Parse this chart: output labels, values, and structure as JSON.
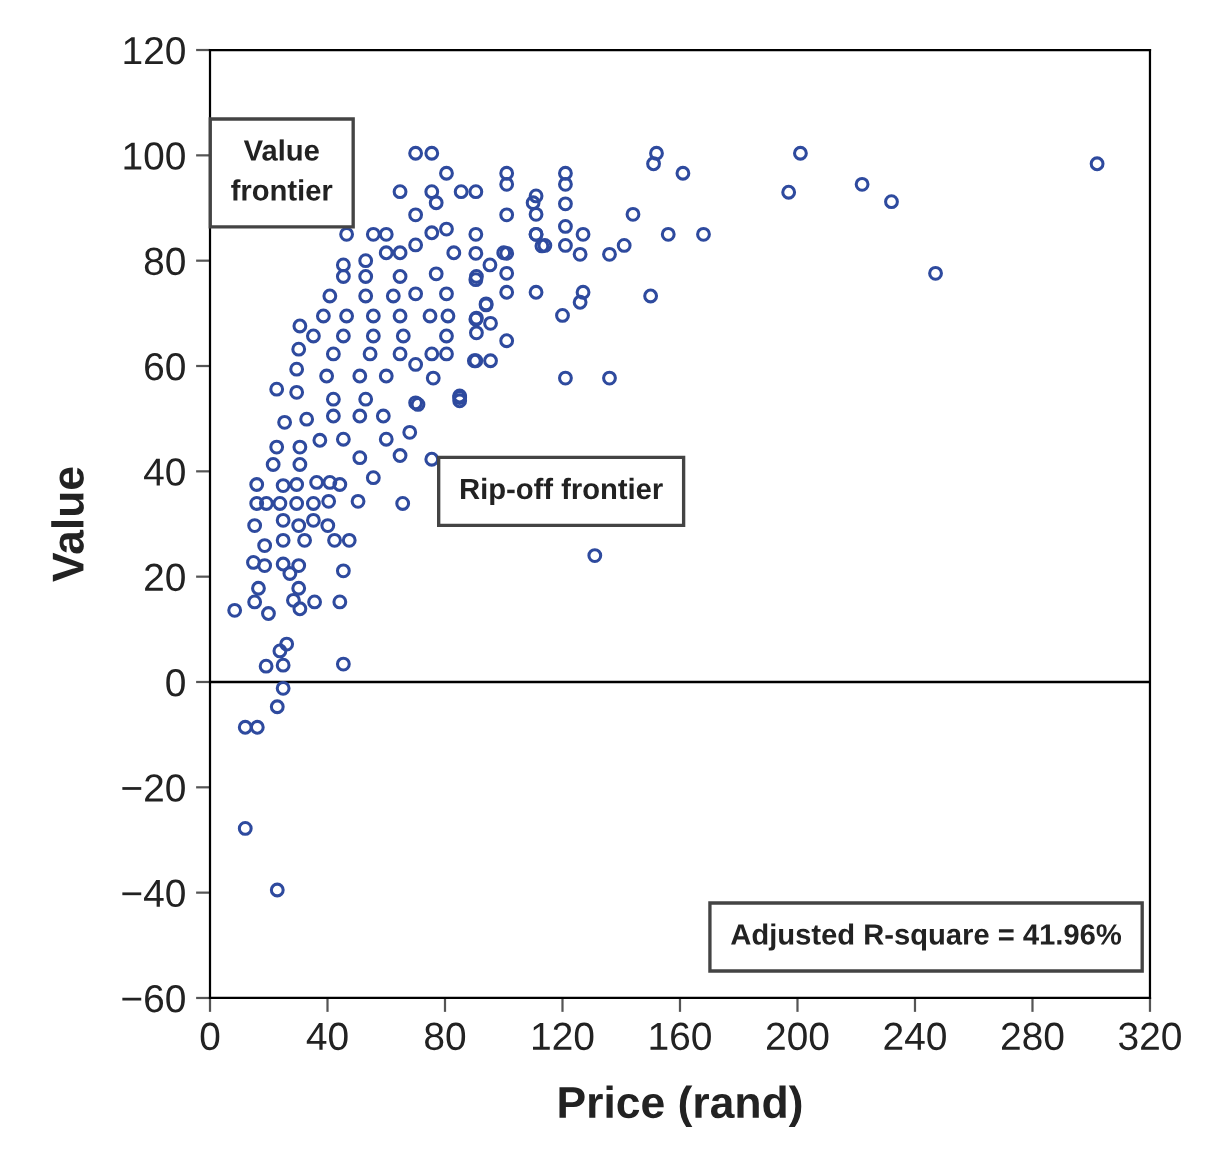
{
  "chart_data": {
    "type": "scatter",
    "xlabel": "Price (rand)",
    "ylabel": "Value",
    "annotations": [
      "Value\nfrontier",
      "Rip-off frontier",
      "Adjusted R-square = 41.96%"
    ],
    "xlim": [
      0,
      320
    ],
    "xticks": [
      0,
      40,
      80,
      120,
      160,
      200,
      240,
      280,
      320
    ],
    "ylim": [
      -60,
      120
    ],
    "yticks": [
      {
        "value": -60,
        "label": "−60"
      },
      {
        "value": -40,
        "label": "−40"
      },
      {
        "value": -20,
        "label": "−20"
      },
      0,
      20,
      40,
      60,
      80,
      100,
      120
    ],
    "grid": false,
    "marker": "circle",
    "ref_lines": [
      {
        "axis": "y",
        "value": 0,
        "color": "#000000"
      }
    ],
    "series": [
      {
        "color": "#2e4a9e",
        "x": [
          152,
          151,
          161,
          201,
          197,
          222,
          232,
          247,
          302,
          144,
          156,
          168,
          150,
          131,
          121,
          136,
          141,
          136,
          127,
          126,
          127,
          126,
          120,
          121,
          121,
          121,
          121,
          121,
          114,
          111,
          111,
          111,
          111,
          101,
          101,
          101,
          101,
          101,
          101,
          101,
          90.5,
          90.5,
          90.5,
          90.5,
          94,
          90.5,
          95.5,
          90.5,
          95.5,
          85,
          70,
          75.5,
          80.5,
          64.7,
          75.5,
          85.5,
          77,
          70,
          110,
          46.5,
          55.6,
          60,
          75.5,
          80.5,
          111,
          113,
          70,
          60,
          64.7,
          83,
          100,
          95.3,
          45.4,
          53,
          45.4,
          53,
          64.7,
          77,
          90.7,
          40.8,
          53,
          62.4,
          70,
          80.5,
          38.6,
          46.5,
          55.6,
          64.7,
          74.9,
          81,
          90.7,
          94,
          30.6,
          35.2,
          45.4,
          55.6,
          65.8,
          80.5,
          90.7,
          30.2,
          42,
          54.5,
          64.7,
          75.5,
          80.5,
          90,
          29.5,
          39.7,
          51,
          60,
          70,
          76,
          85,
          70,
          22.7,
          29.5,
          42,
          53,
          25.4,
          32.9,
          42,
          51,
          59,
          70.8,
          85,
          68,
          75.5,
          60,
          45.4,
          22.7,
          30.6,
          37.4,
          64.7,
          51,
          55.6,
          21.5,
          30.6,
          15.9,
          24.9,
          29.5,
          36.3,
          40.8,
          44.2,
          15.9,
          19.2,
          23.8,
          29.5,
          35.2,
          40.4,
          50.4,
          65.6,
          15.2,
          24.9,
          30.2,
          35.2,
          40.1,
          18.6,
          24.9,
          32.2,
          42.4,
          47.4,
          14.8,
          18.6,
          24.9,
          30.2,
          27.2,
          45.4,
          16.5,
          30.2,
          8.4,
          15.2,
          19.9,
          28.4,
          30.6,
          35.6,
          44.2,
          26.1,
          23.8,
          19.1,
          24.9,
          45.4,
          24.9,
          22.9,
          12,
          16.1,
          12,
          22.9
        ],
        "values": [
          100.4,
          98.4,
          96.6,
          100.4,
          93,
          94.5,
          91.2,
          77.6,
          98.4,
          88.8,
          85,
          85,
          73.3,
          24,
          57.7,
          57.7,
          82.9,
          81.2,
          85,
          81.2,
          74,
          72.1,
          69.6,
          96.6,
          94.5,
          90.8,
          86.5,
          82.9,
          82.9,
          92.3,
          88.8,
          85,
          74,
          96.6,
          94.5,
          88.7,
          81.4,
          77.6,
          74,
          64.8,
          93.1,
          85,
          81.4,
          76.4,
          71.8,
          68.9,
          68.1,
          61,
          61,
          54,
          100.4,
          100.4,
          96.6,
          93.1,
          93.1,
          93.1,
          91,
          88.7,
          91,
          85,
          85,
          85,
          85.3,
          86,
          85,
          82.8,
          83,
          81.5,
          81.5,
          81.5,
          81.5,
          79.2,
          79.2,
          80,
          77,
          77,
          77,
          77.5,
          77,
          73.3,
          73.3,
          73.3,
          73.7,
          73.7,
          69.5,
          69.5,
          69.5,
          69.5,
          69.5,
          69.5,
          69.1,
          71.6,
          67.6,
          65.7,
          65.7,
          65.7,
          65.7,
          65.7,
          66.3,
          63.2,
          62.3,
          62.3,
          62.3,
          62.3,
          62.3,
          61,
          59.4,
          58.1,
          58.1,
          58.1,
          60.3,
          57.7,
          54.3,
          53,
          55.6,
          55,
          53.7,
          53.7,
          49.3,
          49.9,
          50.5,
          50.5,
          50.5,
          52.7,
          53.4,
          47.4,
          42.3,
          46.1,
          46.1,
          44.6,
          44.6,
          45.9,
          43,
          42.6,
          38.8,
          41.3,
          41.3,
          37.5,
          37.3,
          37.5,
          37.9,
          37.9,
          37.5,
          33.9,
          33.9,
          33.9,
          33.9,
          33.9,
          34.3,
          34.3,
          33.9,
          29.7,
          30.7,
          29.7,
          30.7,
          29.7,
          25.9,
          26.9,
          26.9,
          26.9,
          26.9,
          22.7,
          22.1,
          22.4,
          22.1,
          20.6,
          21.1,
          17.8,
          17.8,
          13.6,
          15.2,
          13,
          15.5,
          13.9,
          15.2,
          15.2,
          7.2,
          5.9,
          3,
          3.2,
          3.4,
          -1.2,
          -4.7,
          -8.6,
          -8.6,
          -27.8,
          -39.5
        ]
      }
    ]
  }
}
